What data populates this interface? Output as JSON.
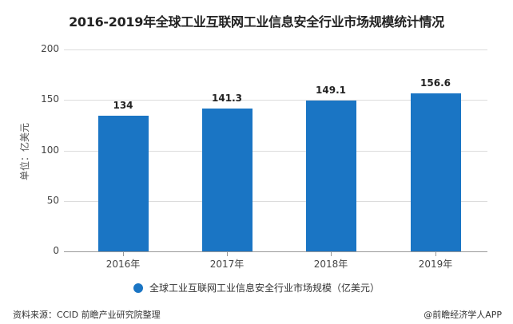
{
  "title": "2016-2019年全球工业互联网工业信息安全行业市场规模统计情况",
  "colors": {
    "bar": "#1a75c4",
    "grid": "#dcdcdc",
    "axis": "#999999"
  },
  "chart_data": {
    "type": "bar",
    "title": "2016-2019年全球工业互联网工业信息安全行业市场规模统计情况",
    "categories": [
      "2016年",
      "2017年",
      "2018年",
      "2019年"
    ],
    "series": [
      {
        "name": "全球工业互联网工业信息安全行业市场规模（亿美元）",
        "values": [
          134,
          141.3,
          149.1,
          156.6
        ]
      }
    ],
    "value_labels": [
      "134",
      "141.3",
      "149.1",
      "156.6"
    ],
    "xlabel": "",
    "ylabel": "单位：亿美元",
    "yticks": [
      "0",
      "50",
      "100",
      "150",
      "200"
    ],
    "ylim": [
      0,
      200
    ],
    "grid": true,
    "legend_position": "bottom"
  },
  "legend": {
    "label": "全球工业互联网工业信息安全行业市场规模（亿美元）"
  },
  "footer": {
    "source": "资料来源：CCID 前瞻产业研究院整理",
    "credit": "@前瞻经济学人APP"
  }
}
